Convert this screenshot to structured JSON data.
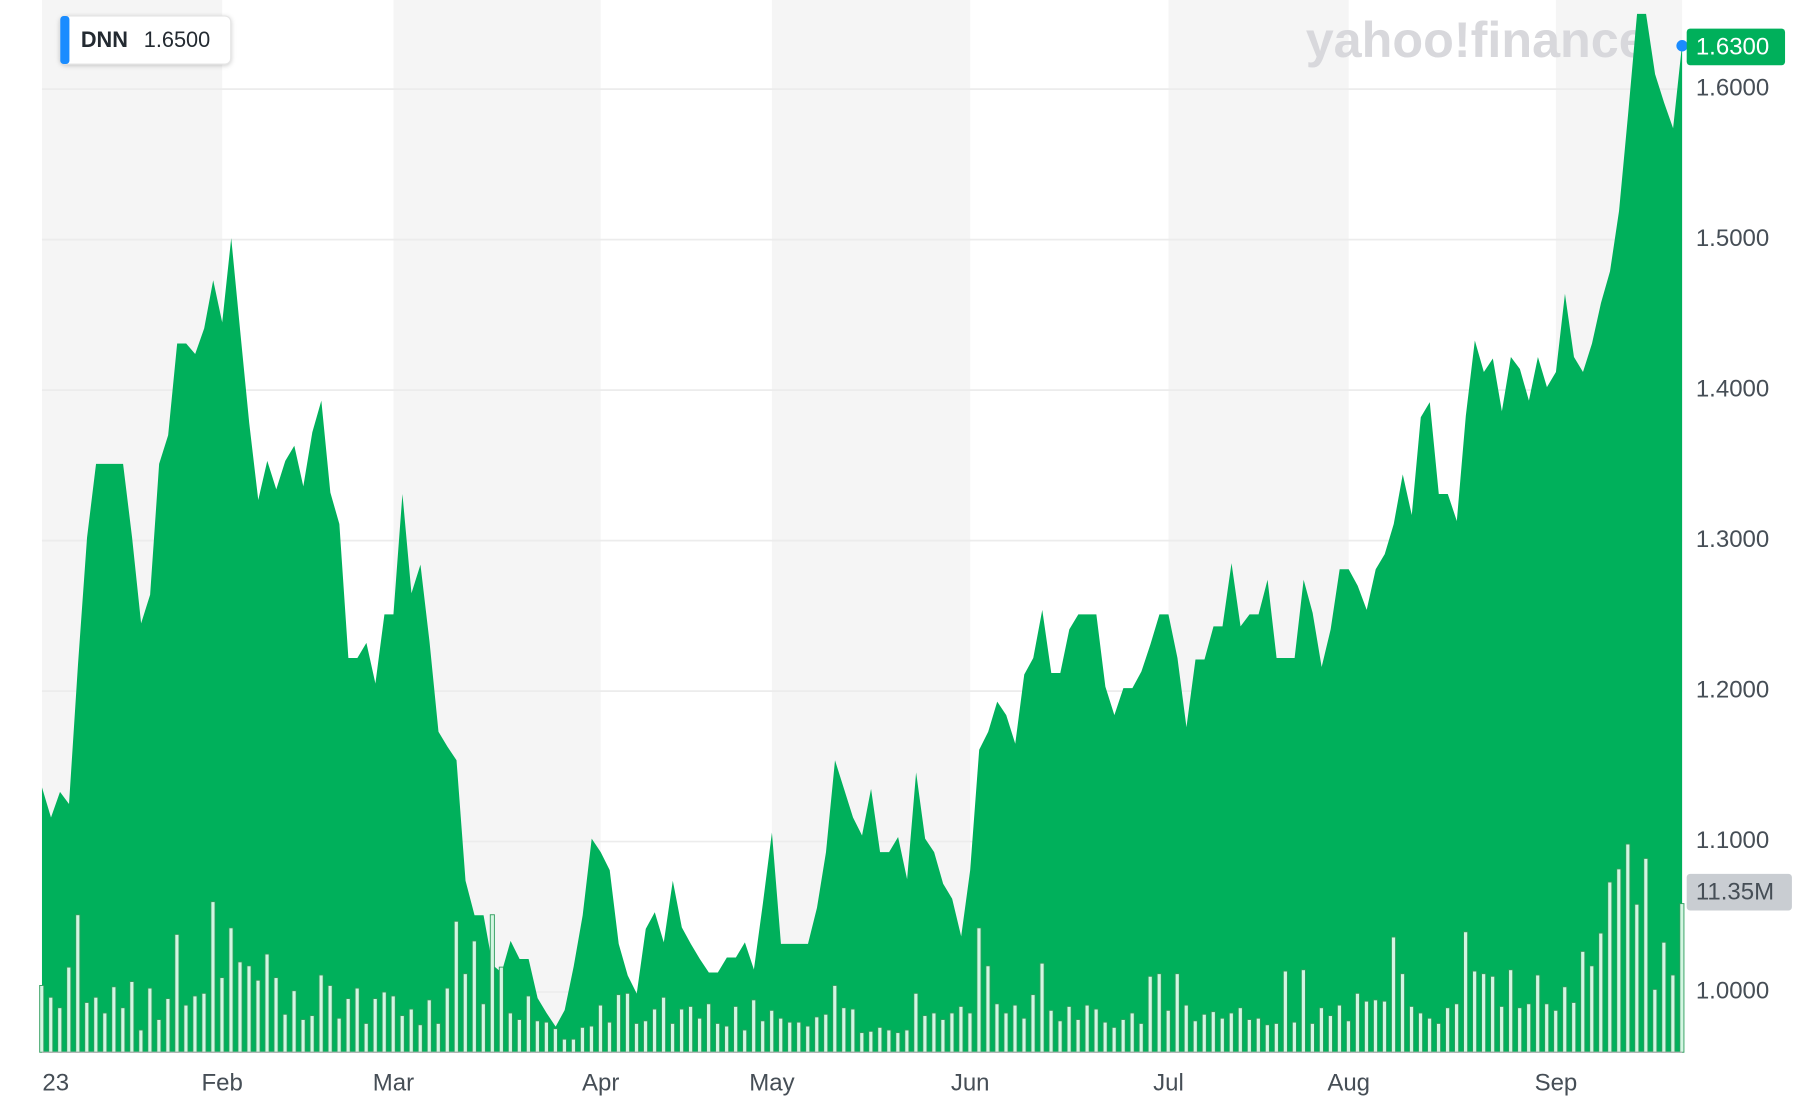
{
  "chart_data": {
    "type": "area",
    "header": {
      "symbol": "DNN",
      "value_label": "1.6500"
    },
    "watermark": "yahoo!finance",
    "categories": [
      "23",
      null,
      null,
      null,
      null,
      null,
      null,
      null,
      null,
      null,
      null,
      null,
      null,
      null,
      null,
      null,
      null,
      null,
      null,
      null,
      "Feb",
      null,
      null,
      null,
      null,
      null,
      null,
      null,
      null,
      null,
      null,
      null,
      null,
      null,
      null,
      null,
      null,
      null,
      null,
      "Mar",
      null,
      null,
      null,
      null,
      null,
      null,
      null,
      null,
      null,
      null,
      null,
      null,
      null,
      null,
      null,
      null,
      null,
      null,
      null,
      null,
      null,
      null,
      "Apr",
      null,
      null,
      null,
      null,
      null,
      null,
      null,
      null,
      null,
      null,
      null,
      null,
      null,
      null,
      null,
      null,
      null,
      null,
      "May",
      null,
      null,
      null,
      null,
      null,
      null,
      null,
      null,
      null,
      null,
      null,
      null,
      null,
      null,
      null,
      null,
      null,
      null,
      null,
      null,
      null,
      "Jun",
      null,
      null,
      null,
      null,
      null,
      null,
      null,
      null,
      null,
      null,
      null,
      null,
      null,
      null,
      null,
      null,
      null,
      null,
      null,
      null,
      null,
      "Jul",
      null,
      null,
      null,
      null,
      null,
      null,
      null,
      null,
      null,
      null,
      null,
      null,
      null,
      null,
      null,
      null,
      null,
      null,
      null,
      "Aug",
      null,
      null,
      null,
      null,
      null,
      null,
      null,
      null,
      null,
      null,
      null,
      null,
      null,
      null,
      null,
      null,
      null,
      null,
      null,
      null,
      null,
      null,
      "Sep",
      null,
      null,
      null,
      null,
      null,
      null,
      null,
      null,
      null,
      null,
      null,
      null,
      null,
      null
    ],
    "series": [
      {
        "name": "DNN",
        "color": "#00b05b",
        "last_label": "1.6300",
        "values": [
          1.136,
          1.116,
          1.133,
          1.125,
          1.218,
          1.302,
          1.351,
          1.351,
          1.351,
          1.351,
          1.302,
          1.245,
          1.264,
          1.351,
          1.37,
          1.431,
          1.431,
          1.424,
          1.441,
          1.473,
          1.445,
          1.501,
          1.439,
          1.378,
          1.327,
          1.353,
          1.334,
          1.353,
          1.363,
          1.336,
          1.372,
          1.393,
          1.332,
          1.311,
          1.222,
          1.222,
          1.232,
          1.205,
          1.251,
          1.251,
          1.331,
          1.265,
          1.284,
          1.233,
          1.173,
          1.163,
          1.154,
          1.074,
          1.051,
          1.051,
          1.018,
          1.013,
          1.034,
          1.022,
          1.022,
          0.996,
          0.986,
          0.977,
          0.988,
          1.017,
          1.051,
          1.102,
          1.093,
          1.081,
          1.032,
          1.011,
          0.999,
          1.042,
          1.053,
          1.033,
          1.074,
          1.043,
          1.032,
          1.022,
          1.013,
          1.013,
          1.023,
          1.023,
          1.033,
          1.015,
          1.059,
          1.106,
          1.032,
          1.032,
          1.032,
          1.032,
          1.056,
          1.093,
          1.154,
          1.135,
          1.116,
          1.104,
          1.135,
          1.093,
          1.093,
          1.103,
          1.075,
          1.146,
          1.102,
          1.093,
          1.072,
          1.062,
          1.037,
          1.081,
          1.161,
          1.173,
          1.193,
          1.184,
          1.165,
          1.211,
          1.222,
          1.254,
          1.212,
          1.212,
          1.241,
          1.251,
          1.251,
          1.251,
          1.203,
          1.184,
          1.202,
          1.202,
          1.213,
          1.231,
          1.251,
          1.251,
          1.222,
          1.176,
          1.221,
          1.221,
          1.243,
          1.243,
          1.285,
          1.243,
          1.251,
          1.251,
          1.274,
          1.222,
          1.222,
          1.222,
          1.274,
          1.252,
          1.216,
          1.241,
          1.281,
          1.281,
          1.27,
          1.254,
          1.281,
          1.291,
          1.311,
          1.344,
          1.317,
          1.382,
          1.392,
          1.331,
          1.331,
          1.313,
          1.383,
          1.433,
          1.412,
          1.421,
          1.386,
          1.422,
          1.414,
          1.393,
          1.422,
          1.402,
          1.412,
          1.464,
          1.422,
          1.412,
          1.431,
          1.458,
          1.479,
          1.519,
          1.583,
          1.65,
          1.65,
          1.61,
          1.591,
          1.574,
          1.63
        ]
      },
      {
        "name": "Volume",
        "color": "#d4f5e2",
        "last_label": "11.35M",
        "values": [
          5.1,
          4.2,
          3.4,
          6.5,
          10.5,
          3.8,
          4.2,
          3.0,
          5.0,
          3.4,
          5.4,
          1.7,
          4.9,
          2.5,
          4.1,
          9.0,
          3.6,
          4.3,
          4.5,
          11.5,
          5.7,
          9.5,
          6.9,
          6.6,
          5.5,
          7.5,
          5.7,
          2.9,
          4.7,
          2.5,
          2.8,
          5.9,
          5.1,
          2.6,
          4.1,
          4.9,
          2.2,
          4.1,
          4.6,
          4.3,
          2.8,
          3.3,
          2.1,
          4.0,
          2.2,
          4.9,
          10.0,
          6.0,
          8.5,
          3.7,
          10.5,
          6.5,
          3.0,
          2.5,
          4.3,
          2.4,
          2.3,
          1.8,
          1.0,
          1.0,
          1.9,
          2.0,
          3.6,
          2.3,
          4.4,
          4.5,
          2.2,
          2.4,
          3.3,
          4.2,
          2.2,
          3.3,
          3.5,
          2.6,
          3.7,
          2.2,
          2.0,
          3.5,
          1.7,
          4.0,
          2.4,
          3.2,
          2.6,
          2.3,
          2.3,
          2.0,
          2.7,
          2.9,
          5.1,
          3.4,
          3.3,
          1.5,
          1.6,
          1.9,
          1.7,
          1.5,
          1.7,
          4.5,
          2.8,
          3.0,
          2.5,
          3.0,
          3.5,
          3.0,
          9.5,
          6.6,
          3.7,
          3.0,
          3.6,
          2.6,
          4.4,
          6.8,
          3.2,
          2.4,
          3.5,
          2.5,
          3.6,
          3.3,
          2.3,
          1.9,
          2.5,
          3.0,
          2.2,
          5.8,
          6.0,
          3.2,
          6.0,
          3.6,
          2.4,
          2.9,
          3.1,
          2.6,
          3.0,
          3.4,
          2.5,
          2.6,
          2.1,
          2.2,
          6.2,
          2.3,
          6.3,
          2.2,
          3.4,
          2.8,
          3.6,
          2.4,
          4.5,
          3.9,
          4.0,
          3.9,
          8.8,
          6.0,
          3.5,
          3.0,
          2.6,
          2.2,
          3.4,
          3.7,
          9.2,
          6.2,
          6.0,
          5.8,
          3.5,
          6.3,
          3.4,
          3.7,
          5.9,
          3.7,
          3.2,
          5.0,
          3.8,
          7.7,
          6.6,
          9.1,
          13.0,
          14.0,
          15.9,
          11.3,
          14.8,
          4.8,
          8.4,
          5.9,
          11.35
        ]
      }
    ],
    "ylim": [
      0.96,
      1.66
    ],
    "yticks": [
      {
        "value": 1.0,
        "label": "1.0000"
      },
      {
        "value": 1.1,
        "label": "1.1000"
      },
      {
        "value": 1.2,
        "label": "1.2000"
      },
      {
        "value": 1.3,
        "label": "1.3000"
      },
      {
        "value": 1.4,
        "label": "1.4000"
      },
      {
        "value": 1.5,
        "label": "1.5000"
      },
      {
        "value": 1.6,
        "label": "1.6000"
      }
    ],
    "grid": true,
    "month_shading": true
  }
}
